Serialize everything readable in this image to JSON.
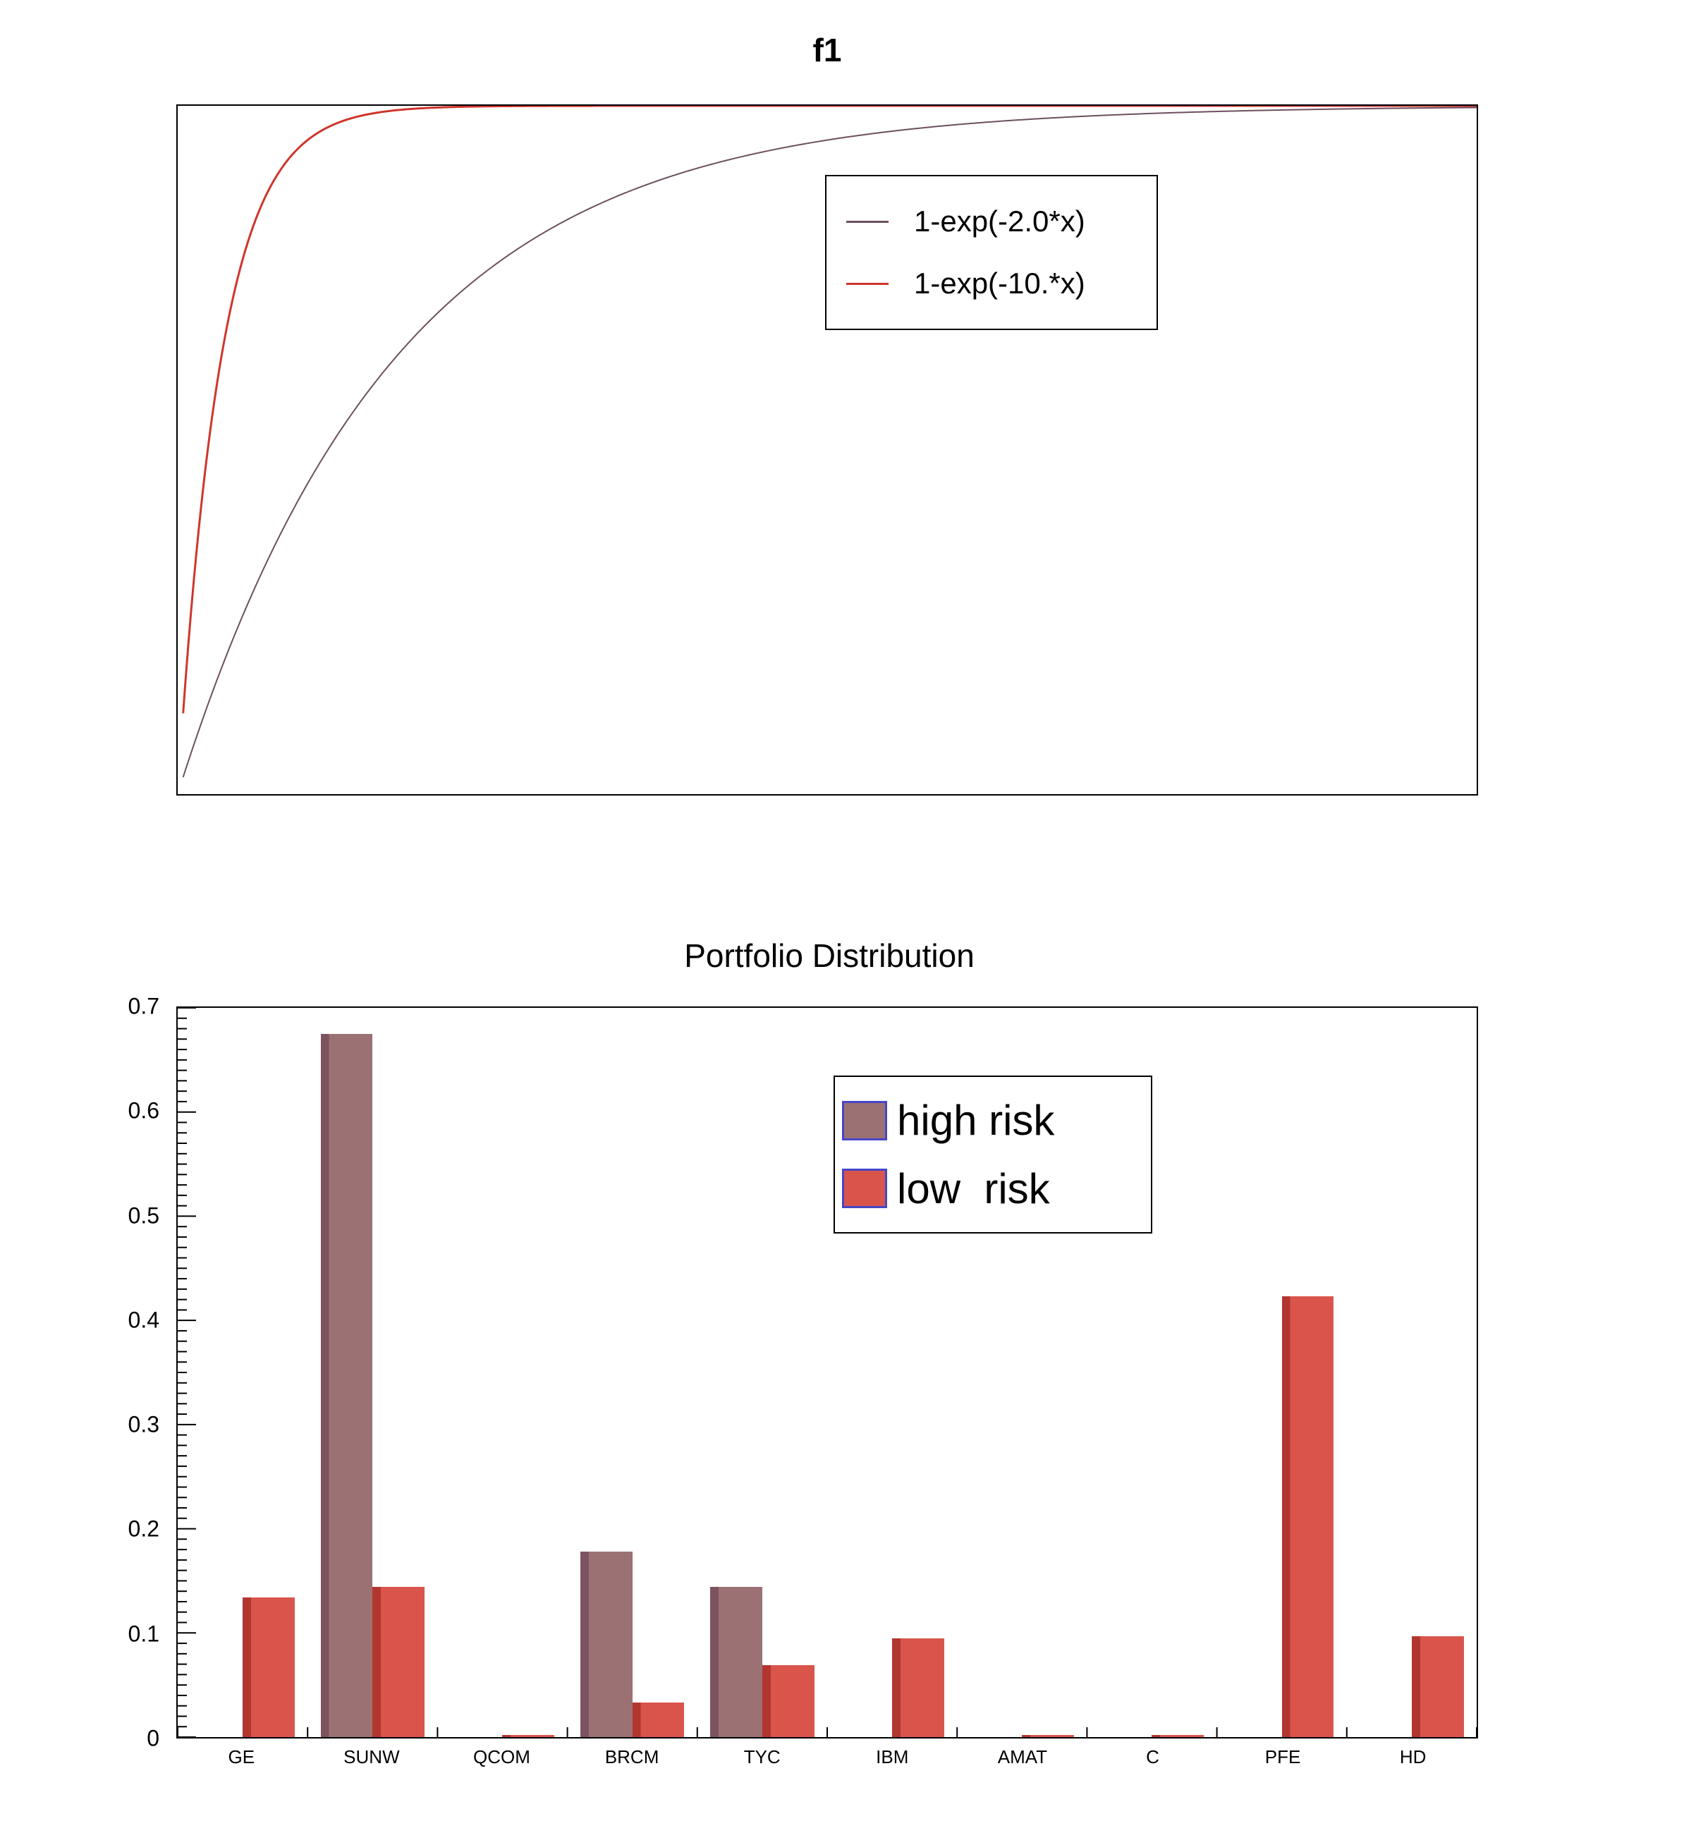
{
  "page": {
    "background": "#ffffff"
  },
  "chart_data": [
    {
      "type": "line",
      "title": "f1",
      "x_range": [
        0,
        3
      ],
      "y_range": [
        0,
        1
      ],
      "x_draw_start": 0.0125,
      "grid": false,
      "legend_position": "upper-center-right",
      "series": [
        {
          "name": "1-exp(-2.0*x)",
          "formula": "1-exp(-k*x)",
          "k": 2.0,
          "color": "#6d4f5f"
        },
        {
          "name": "1-exp(-10.*x)",
          "formula": "1-exp(-k*x)",
          "k": 10.0,
          "color": "#cf352c"
        }
      ]
    },
    {
      "type": "bar",
      "title": "Portfolio Distribution",
      "categories": [
        "GE",
        "SUNW",
        "QCOM",
        "BRCM",
        "TYC",
        "IBM",
        "AMAT",
        "C",
        "PFE",
        "HD"
      ],
      "ylim": [
        0,
        0.7
      ],
      "ytick_step": 0.1,
      "ytick_labels": [
        "0",
        "0.1",
        "0.2",
        "0.3",
        "0.4",
        "0.5",
        "0.6",
        "0.7"
      ],
      "legend_position": "upper-center-right",
      "legend_swatch_border": "#4646c8",
      "series": [
        {
          "name": "high risk",
          "color": "#9c7174",
          "edge_color": "#7d5360",
          "values": [
            0,
            0.675,
            0,
            0.178,
            0.144,
            0,
            0,
            0,
            0,
            0
          ]
        },
        {
          "name": "low  risk",
          "color": "#d9554c",
          "edge_color": "#b23630",
          "values": [
            0.134,
            0.144,
            0.002,
            0.033,
            0.069,
            0.095,
            0.002,
            0.002,
            0.423,
            0.097
          ]
        }
      ]
    }
  ]
}
